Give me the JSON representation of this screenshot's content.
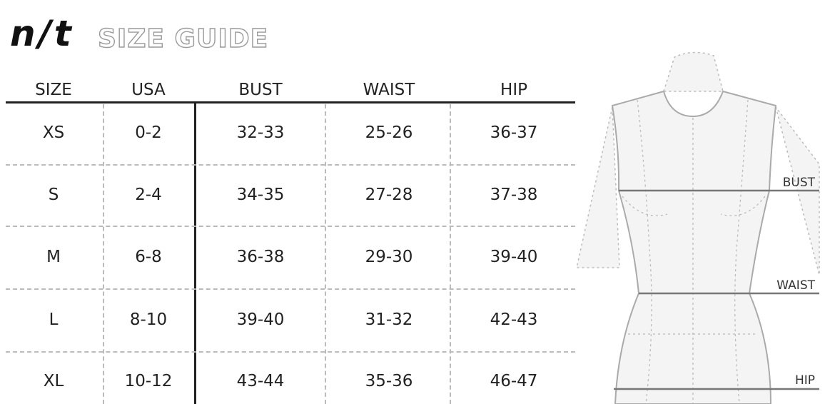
{
  "brand": {
    "logo": "n/t",
    "title": "SIZE GUIDE"
  },
  "table": {
    "columns": [
      "SIZE",
      "USA",
      "BUST",
      "WAIST",
      "HIP"
    ],
    "rows": [
      [
        "XS",
        "0-2",
        "32-33",
        "25-26",
        "36-37"
      ],
      [
        "S",
        "2-4",
        "34-35",
        "27-28",
        "37-38"
      ],
      [
        "M",
        "6-8",
        "36-38",
        "29-30",
        "39-40"
      ],
      [
        "L",
        "8-10",
        "39-40",
        "31-32",
        "42-43"
      ],
      [
        "XL",
        "10-12",
        "43-44",
        "35-36",
        "46-47"
      ]
    ]
  },
  "figure": {
    "labels": {
      "bust": "BUST",
      "waist": "WAIST",
      "hip": "HIP"
    }
  }
}
